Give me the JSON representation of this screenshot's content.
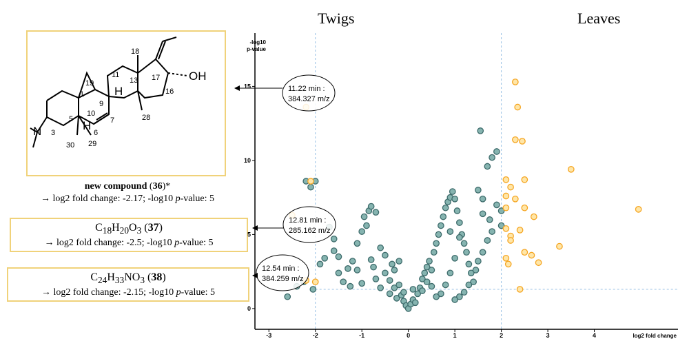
{
  "headers": {
    "twigs": "Twigs",
    "leaves": "Leaves"
  },
  "compound36": {
    "name": "new compound",
    "id": "36",
    "suffix": "*",
    "detail_prefix": "→ log2 fold change: -2.17; -log10 ",
    "detail_p": "p",
    "detail_suffix": "-value: 5",
    "atom_labels": [
      "18",
      "19",
      "11",
      "1",
      "13",
      "17",
      "OH",
      "16",
      "H",
      "9",
      "10",
      "3",
      "N",
      "5",
      "H",
      "6",
      "7",
      "28",
      "30",
      "29"
    ]
  },
  "compound37": {
    "formula": {
      "c": "C",
      "c_n": "18",
      "h": "H",
      "h_n": "20",
      "o": "O",
      "o_n": "3"
    },
    "id": "37",
    "detail_prefix": "→ log2 fold change: -2.5; -log10 ",
    "detail_p": "p",
    "detail_suffix": "-value: 5"
  },
  "compound38": {
    "formula": {
      "c": "C",
      "c_n": "24",
      "h": "H",
      "h_n": "33",
      "n": "NO",
      "n_n": "3"
    },
    "id": "38",
    "detail_prefix": "→ log2 fold change: -2.15; -log10 ",
    "detail_p": "p",
    "detail_suffix": "-value: 5"
  },
  "annotations": [
    {
      "line1": "11.22 min :",
      "line2": "384.327 m/z"
    },
    {
      "line1": "12.81 min :",
      "line2": "285.162 m/z"
    },
    {
      "line1": "12.54 min :",
      "line2": "384.259 m/z"
    }
  ],
  "colors": {
    "teal": "#3d6b6b",
    "teal_fill": "#86b4b0",
    "orange": "#f5a623",
    "orange_fill": "#ffe6a8",
    "box_border": "#f0d27a",
    "guide": "#9cc3e6"
  },
  "chart_data": {
    "type": "scatter",
    "title": "",
    "xlabel": "log2 fold change",
    "ylabel": "-log10 p-value",
    "xlim": [
      -3.3,
      5.8
    ],
    "ylim": [
      -1.4,
      18.6
    ],
    "xticks": [
      -3,
      -2,
      -1,
      0,
      1,
      2,
      3,
      4
    ],
    "yticks": [
      0,
      5,
      10,
      15
    ],
    "thresholds": {
      "x": [
        -2,
        2
      ],
      "y": 1.3
    },
    "series": [
      {
        "color": "teal",
        "points": [
          [
            -2.0,
            8.6
          ],
          [
            -2.1,
            8.2
          ],
          [
            -2.2,
            8.6
          ],
          [
            -2.4,
            1.5
          ],
          [
            -2.6,
            0.8
          ],
          [
            -2.25,
            1.8
          ],
          [
            -2.05,
            1.3
          ],
          [
            -1.9,
            3.0
          ],
          [
            -1.8,
            3.4
          ],
          [
            -1.6,
            3.9
          ],
          [
            -1.7,
            5.5
          ],
          [
            -1.6,
            4.7
          ],
          [
            -1.5,
            3.5
          ],
          [
            -1.5,
            2.4
          ],
          [
            -1.4,
            1.8
          ],
          [
            -1.3,
            2.7
          ],
          [
            -1.25,
            1.5
          ],
          [
            -1.2,
            3.2
          ],
          [
            -1.1,
            2.6
          ],
          [
            -1.0,
            1.7
          ],
          [
            -1.0,
            5.2
          ],
          [
            -0.95,
            6.2
          ],
          [
            -0.9,
            5.6
          ],
          [
            -0.85,
            6.6
          ],
          [
            -0.8,
            6.9
          ],
          [
            -0.7,
            6.5
          ],
          [
            -0.8,
            3.3
          ],
          [
            -0.75,
            2.8
          ],
          [
            -0.7,
            2.0
          ],
          [
            -0.6,
            1.4
          ],
          [
            -0.6,
            4.1
          ],
          [
            -0.5,
            3.6
          ],
          [
            -0.5,
            2.4
          ],
          [
            -0.4,
            1.9
          ],
          [
            -0.4,
            1.0
          ],
          [
            -0.3,
            2.6
          ],
          [
            -0.3,
            1.4
          ],
          [
            -0.25,
            0.7
          ],
          [
            -0.2,
            3.2
          ],
          [
            -0.2,
            1.6
          ],
          [
            -0.15,
            0.9
          ],
          [
            -0.1,
            0.5
          ],
          [
            -0.05,
            0.2
          ],
          [
            0.0,
            0.0
          ],
          [
            0.05,
            0.3
          ],
          [
            0.1,
            0.6
          ],
          [
            0.15,
            0.4
          ],
          [
            0.2,
            1.0
          ],
          [
            0.25,
            1.4
          ],
          [
            0.3,
            1.2
          ],
          [
            0.3,
            2.0
          ],
          [
            0.35,
            2.4
          ],
          [
            0.4,
            1.8
          ],
          [
            0.4,
            2.8
          ],
          [
            0.45,
            3.2
          ],
          [
            0.5,
            2.6
          ],
          [
            0.55,
            3.8
          ],
          [
            0.6,
            4.4
          ],
          [
            0.65,
            5.0
          ],
          [
            0.7,
            5.6
          ],
          [
            0.75,
            6.2
          ],
          [
            0.8,
            6.8
          ],
          [
            0.85,
            7.2
          ],
          [
            0.9,
            7.5
          ],
          [
            0.95,
            7.9
          ],
          [
            1.0,
            7.4
          ],
          [
            1.05,
            6.6
          ],
          [
            1.1,
            5.8
          ],
          [
            1.15,
            5.0
          ],
          [
            1.2,
            4.4
          ],
          [
            1.25,
            3.8
          ],
          [
            1.3,
            3.0
          ],
          [
            1.35,
            2.4
          ],
          [
            1.4,
            1.8
          ],
          [
            1.0,
            3.4
          ],
          [
            0.9,
            2.4
          ],
          [
            0.8,
            1.6
          ],
          [
            0.7,
            1.0
          ],
          [
            0.6,
            0.8
          ],
          [
            0.5,
            1.5
          ],
          [
            1.5,
            8.0
          ],
          [
            1.6,
            7.4
          ],
          [
            1.55,
            12.0
          ],
          [
            1.8,
            10.2
          ],
          [
            1.9,
            10.6
          ],
          [
            1.7,
            9.6
          ],
          [
            1.9,
            7.0
          ],
          [
            2.0,
            6.6
          ],
          [
            2.0,
            5.6
          ],
          [
            1.8,
            5.2
          ],
          [
            1.7,
            4.6
          ],
          [
            1.6,
            3.8
          ],
          [
            1.5,
            3.2
          ],
          [
            1.45,
            2.6
          ],
          [
            1.3,
            1.6
          ],
          [
            1.2,
            1.1
          ],
          [
            1.1,
            0.8
          ],
          [
            1.0,
            0.6
          ],
          [
            1.6,
            6.4
          ],
          [
            1.75,
            6.0
          ],
          [
            -0.1,
            1.1
          ],
          [
            0.1,
            1.3
          ],
          [
            -0.35,
            3.0
          ],
          [
            0.9,
            5.2
          ],
          [
            1.1,
            4.8
          ],
          [
            -1.1,
            4.4
          ]
        ]
      },
      {
        "color": "orange",
        "points": [
          [
            -2.2,
            13.6
          ],
          [
            -2.1,
            8.6
          ],
          [
            -2.5,
            6.3
          ],
          [
            -2.2,
            1.9
          ],
          [
            -2.0,
            1.8
          ],
          [
            2.3,
            15.3
          ],
          [
            2.35,
            13.6
          ],
          [
            2.3,
            11.4
          ],
          [
            2.45,
            11.3
          ],
          [
            2.5,
            8.7
          ],
          [
            2.1,
            8.7
          ],
          [
            2.2,
            8.2
          ],
          [
            2.1,
            7.6
          ],
          [
            2.3,
            7.4
          ],
          [
            2.1,
            6.8
          ],
          [
            2.5,
            6.8
          ],
          [
            2.1,
            5.4
          ],
          [
            2.2,
            4.9
          ],
          [
            2.4,
            5.3
          ],
          [
            2.7,
            6.2
          ],
          [
            3.5,
            9.4
          ],
          [
            4.95,
            6.7
          ],
          [
            3.25,
            4.2
          ],
          [
            2.65,
            3.6
          ],
          [
            2.8,
            3.1
          ],
          [
            2.15,
            3.0
          ],
          [
            2.5,
            3.8
          ],
          [
            2.4,
            1.3
          ],
          [
            2.2,
            4.6
          ],
          [
            2.1,
            3.4
          ]
        ]
      }
    ]
  }
}
